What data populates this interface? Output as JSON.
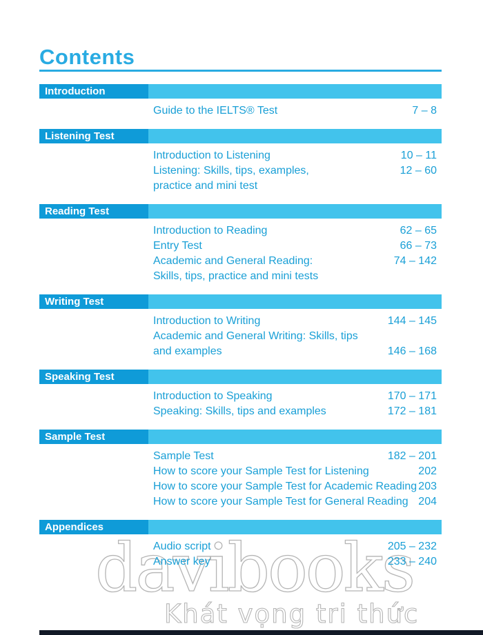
{
  "page": {
    "title": "Contents",
    "colors": {
      "header_dark_blue": "#0f9bd8",
      "header_light_blue": "#42c3ec",
      "title_accent": "#29abe2",
      "entry_text": "#199fd6",
      "header_label_text": "#ffffff",
      "watermark_outline": "#b5b5b5",
      "bottom_bar": "#121926"
    }
  },
  "sections": [
    {
      "label": "Introduction",
      "entries": [
        {
          "lines": [
            "Guide to the IELTS® Test"
          ],
          "pages": "7 – 8",
          "page_line": 0
        }
      ]
    },
    {
      "label": "Listening Test",
      "entries": [
        {
          "lines": [
            "Introduction to Listening"
          ],
          "pages": "10 – 11",
          "page_line": 0
        },
        {
          "lines": [
            "Listening: Skills, tips, examples,",
            "practice and mini test"
          ],
          "pages": "12 – 60",
          "page_line": 0
        }
      ]
    },
    {
      "label": "Reading Test",
      "entries": [
        {
          "lines": [
            "Introduction to Reading"
          ],
          "pages": "62 – 65",
          "page_line": 0
        },
        {
          "lines": [
            "Entry Test"
          ],
          "pages": "66 – 73",
          "page_line": 0
        },
        {
          "lines": [
            "Academic and General Reading:",
            "Skills, tips, practice and mini tests"
          ],
          "pages": "74 – 142",
          "page_line": 0
        }
      ]
    },
    {
      "label": "Writing Test",
      "entries": [
        {
          "lines": [
            "Introduction to Writing"
          ],
          "pages": "144 – 145",
          "page_line": 0
        },
        {
          "lines": [
            "Academic and General Writing: Skills, tips",
            "and examples"
          ],
          "pages": "146 – 168",
          "page_line": 1
        }
      ]
    },
    {
      "label": "Speaking Test",
      "entries": [
        {
          "lines": [
            "Introduction to Speaking"
          ],
          "pages": "170 – 171",
          "page_line": 0
        },
        {
          "lines": [
            "Speaking: Skills, tips and examples"
          ],
          "pages": "172 – 181",
          "page_line": 0
        }
      ]
    },
    {
      "label": "Sample Test",
      "entries": [
        {
          "lines": [
            "Sample Test"
          ],
          "pages": "182 – 201",
          "page_line": 0
        },
        {
          "lines": [
            "How to score your Sample Test for Listening"
          ],
          "pages": "202",
          "page_line": 0
        },
        {
          "lines": [
            "How to score your Sample Test for Academic Reading"
          ],
          "pages": "203",
          "page_line": 0
        },
        {
          "lines": [
            "How to score your Sample Test for General Reading"
          ],
          "pages": "204",
          "page_line": 0
        }
      ]
    },
    {
      "label": "Appendices",
      "entries": [
        {
          "lines": [
            "Audio script"
          ],
          "pages": "205 – 232",
          "page_line": 0
        },
        {
          "lines": [
            "Answer key"
          ],
          "pages": "233 – 240",
          "page_line": 0
        }
      ]
    }
  ],
  "watermark": {
    "brand": "davibooks",
    "tagline": "Khát vọng tri thức"
  }
}
